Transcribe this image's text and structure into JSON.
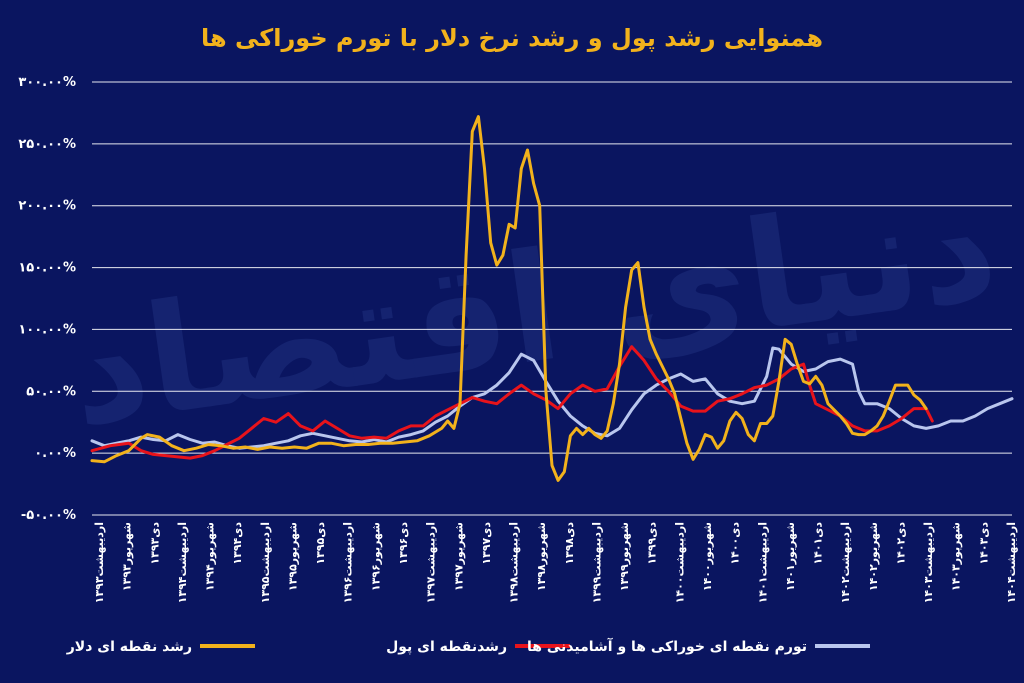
{
  "chart_data": {
    "type": "line",
    "title": "همنوایی رشد پول و رشد نرخ دلار با تورم خوراکی ها",
    "xlabel": "",
    "ylabel": "",
    "ylim": [
      -50,
      300
    ],
    "y_ticks": [
      "۳۰۰.۰۰%",
      "۲۵۰.۰۰%",
      "۲۰۰.۰۰%",
      "۱۵۰.۰۰%",
      "۱۰۰.۰۰%",
      "۵۰.۰۰%",
      "۰.۰۰%",
      "-۵۰.۰۰%"
    ],
    "y_tick_values": [
      300,
      250,
      200,
      150,
      100,
      50,
      0,
      -50
    ],
    "x_start_index": 0,
    "x_end_index": 127,
    "x_tick_labels": [
      "اردیبهشت۱۳۹۳",
      "شهریور۱۳۹۳",
      "دی۱۳۹۳",
      "اردیبهشت۱۳۹۴",
      "شهریور۱۳۹۴",
      "دی۱۳۹۴",
      "اردیبهشت۱۳۹۵",
      "شهریور۱۳۹۵",
      "دی۱۳۹۵",
      "اردیبهشت۱۳۹۶",
      "شهریور۱۳۹۶",
      "دی۱۳۹۶",
      "اردیبهشت۱۳۹۷",
      "شهریور۱۳۹۷",
      "دی۱۳۹۷",
      "اردیبهشت۱۳۹۸",
      "شهریور۱۳۹۸",
      "دی۱۳۹۸",
      "اردیبهشت۱۳۹۹",
      "شهریور۱۳۹۹",
      "دی۱۳۹۹",
      "اردیبهشت۱۴۰۰",
      "شهریور۱۴۰۰",
      "دی۱۴۰۰",
      "اردیبهشت۱۴۰۱",
      "شهریور۱۴۰۱",
      "دی۱۴۰۱",
      "اردیبهشت۱۴۰۲",
      "شهریور۱۴۰۲",
      "دی۱۴۰۲",
      "اردیبهشت۱۴۰۳",
      "شهریور۱۴۰۳",
      "دی۱۴۰۳",
      "اردیبهشت۱۴۰۴"
    ],
    "legend_position": "bottom",
    "grid": true,
    "series": [
      {
        "name": "رشد نقطه ای دلار",
        "color": "#f2b21c",
        "points": [
          [
            0,
            -6
          ],
          [
            2,
            -7
          ],
          [
            4,
            -2
          ],
          [
            6,
            2
          ],
          [
            8,
            12
          ],
          [
            9,
            15
          ],
          [
            11,
            13
          ],
          [
            13,
            6
          ],
          [
            15,
            2
          ],
          [
            17,
            4
          ],
          [
            19,
            7
          ],
          [
            21,
            6
          ],
          [
            23,
            4
          ],
          [
            25,
            5
          ],
          [
            27,
            3
          ],
          [
            29,
            5
          ],
          [
            31,
            4
          ],
          [
            33,
            5
          ],
          [
            35,
            4
          ],
          [
            37,
            8
          ],
          [
            39,
            8
          ],
          [
            41,
            6
          ],
          [
            43,
            7
          ],
          [
            45,
            7
          ],
          [
            47,
            8
          ],
          [
            49,
            8
          ],
          [
            51,
            9
          ],
          [
            53,
            10
          ],
          [
            55,
            14
          ],
          [
            57,
            20
          ],
          [
            58,
            26
          ],
          [
            59,
            20
          ],
          [
            60,
            40
          ],
          [
            61,
            160
          ],
          [
            62,
            260
          ],
          [
            63,
            272
          ],
          [
            64,
            230
          ],
          [
            65,
            170
          ],
          [
            66,
            152
          ],
          [
            67,
            160
          ],
          [
            68,
            185
          ],
          [
            69,
            182
          ],
          [
            70,
            230
          ],
          [
            71,
            245
          ],
          [
            72,
            218
          ],
          [
            73,
            200
          ],
          [
            74,
            50
          ],
          [
            75,
            -10
          ],
          [
            76,
            -22
          ],
          [
            77,
            -15
          ],
          [
            78,
            14
          ],
          [
            79,
            20
          ],
          [
            80,
            15
          ],
          [
            81,
            20
          ],
          [
            82,
            15
          ],
          [
            83,
            12
          ],
          [
            84,
            18
          ],
          [
            85,
            40
          ],
          [
            86,
            72
          ],
          [
            87,
            118
          ],
          [
            88,
            148
          ],
          [
            89,
            154
          ],
          [
            90,
            118
          ],
          [
            91,
            92
          ],
          [
            92,
            80
          ],
          [
            93,
            70
          ],
          [
            94,
            60
          ],
          [
            95,
            48
          ],
          [
            96,
            28
          ],
          [
            97,
            8
          ],
          [
            98,
            -5
          ],
          [
            99,
            3
          ],
          [
            100,
            15
          ],
          [
            101,
            13
          ],
          [
            102,
            4
          ],
          [
            103,
            10
          ],
          [
            104,
            26
          ],
          [
            105,
            33
          ],
          [
            106,
            28
          ],
          [
            107,
            15
          ],
          [
            108,
            10
          ],
          [
            109,
            24
          ],
          [
            110,
            24
          ],
          [
            111,
            30
          ],
          [
            112,
            58
          ],
          [
            113,
            92
          ],
          [
            114,
            88
          ],
          [
            115,
            72
          ],
          [
            116,
            58
          ],
          [
            117,
            56
          ],
          [
            118,
            62
          ],
          [
            119,
            55
          ],
          [
            120,
            40
          ],
          [
            121,
            35
          ],
          [
            122,
            30
          ],
          [
            123,
            24
          ],
          [
            124,
            16
          ],
          [
            125,
            15
          ],
          [
            126,
            15
          ],
          [
            127,
            18
          ],
          [
            128,
            22
          ],
          [
            129,
            30
          ],
          [
            130,
            42
          ],
          [
            131,
            55
          ],
          [
            132,
            55
          ],
          [
            133,
            55
          ],
          [
            134,
            47
          ],
          [
            135,
            43
          ],
          [
            136,
            36
          ]
        ]
      },
      {
        "name": "رشدنقطه ای پول",
        "color": "#e8131b",
        "points": [
          [
            0,
            2
          ],
          [
            3,
            6
          ],
          [
            6,
            8
          ],
          [
            8,
            2
          ],
          [
            10,
            -1
          ],
          [
            12,
            -2
          ],
          [
            14,
            -3
          ],
          [
            16,
            -4
          ],
          [
            18,
            -2
          ],
          [
            20,
            2
          ],
          [
            22,
            7
          ],
          [
            24,
            12
          ],
          [
            26,
            20
          ],
          [
            28,
            28
          ],
          [
            30,
            25
          ],
          [
            32,
            32
          ],
          [
            34,
            22
          ],
          [
            36,
            18
          ],
          [
            38,
            26
          ],
          [
            40,
            20
          ],
          [
            42,
            14
          ],
          [
            44,
            12
          ],
          [
            46,
            13
          ],
          [
            48,
            12
          ],
          [
            50,
            18
          ],
          [
            52,
            22
          ],
          [
            54,
            22
          ],
          [
            56,
            30
          ],
          [
            58,
            35
          ],
          [
            60,
            40
          ],
          [
            62,
            45
          ],
          [
            64,
            42
          ],
          [
            66,
            40
          ],
          [
            68,
            48
          ],
          [
            70,
            55
          ],
          [
            72,
            48
          ],
          [
            74,
            43
          ],
          [
            76,
            36
          ],
          [
            78,
            48
          ],
          [
            80,
            55
          ],
          [
            82,
            50
          ],
          [
            84,
            52
          ],
          [
            86,
            70
          ],
          [
            87,
            78
          ],
          [
            88,
            86
          ],
          [
            90,
            75
          ],
          [
            92,
            60
          ],
          [
            94,
            50
          ],
          [
            96,
            38
          ],
          [
            98,
            34
          ],
          [
            100,
            34
          ],
          [
            102,
            42
          ],
          [
            104,
            44
          ],
          [
            106,
            48
          ],
          [
            108,
            53
          ],
          [
            110,
            55
          ],
          [
            112,
            60
          ],
          [
            114,
            68
          ],
          [
            116,
            72
          ],
          [
            117,
            55
          ],
          [
            118,
            40
          ],
          [
            120,
            35
          ],
          [
            122,
            30
          ],
          [
            124,
            22
          ],
          [
            126,
            18
          ],
          [
            128,
            18
          ],
          [
            130,
            22
          ],
          [
            132,
            28
          ],
          [
            134,
            36
          ],
          [
            136,
            36
          ],
          [
            137,
            26
          ]
        ]
      },
      {
        "name": "تورم نقطه ای خوراکی ها و آشامیدنی ها",
        "color": "#b9c6ee",
        "points": [
          [
            0,
            10
          ],
          [
            2,
            6
          ],
          [
            4,
            8
          ],
          [
            6,
            10
          ],
          [
            8,
            13
          ],
          [
            10,
            11
          ],
          [
            12,
            10
          ],
          [
            14,
            15
          ],
          [
            16,
            11
          ],
          [
            18,
            8
          ],
          [
            20,
            9
          ],
          [
            22,
            6
          ],
          [
            24,
            4
          ],
          [
            26,
            5
          ],
          [
            28,
            6
          ],
          [
            30,
            8
          ],
          [
            32,
            10
          ],
          [
            34,
            14
          ],
          [
            36,
            16
          ],
          [
            38,
            14
          ],
          [
            40,
            12
          ],
          [
            42,
            10
          ],
          [
            44,
            9
          ],
          [
            46,
            11
          ],
          [
            48,
            9
          ],
          [
            50,
            13
          ],
          [
            52,
            15
          ],
          [
            54,
            18
          ],
          [
            56,
            25
          ],
          [
            58,
            30
          ],
          [
            60,
            38
          ],
          [
            62,
            45
          ],
          [
            64,
            48
          ],
          [
            66,
            55
          ],
          [
            68,
            65
          ],
          [
            70,
            80
          ],
          [
            72,
            75
          ],
          [
            74,
            58
          ],
          [
            76,
            42
          ],
          [
            78,
            30
          ],
          [
            80,
            22
          ],
          [
            82,
            16
          ],
          [
            84,
            14
          ],
          [
            86,
            20
          ],
          [
            88,
            35
          ],
          [
            90,
            48
          ],
          [
            92,
            55
          ],
          [
            94,
            60
          ],
          [
            96,
            64
          ],
          [
            98,
            58
          ],
          [
            100,
            60
          ],
          [
            102,
            48
          ],
          [
            104,
            42
          ],
          [
            106,
            40
          ],
          [
            108,
            42
          ],
          [
            110,
            62
          ],
          [
            111,
            85
          ],
          [
            112,
            84
          ],
          [
            114,
            72
          ],
          [
            116,
            66
          ],
          [
            118,
            68
          ],
          [
            120,
            74
          ],
          [
            122,
            76
          ],
          [
            124,
            72
          ],
          [
            125,
            50
          ],
          [
            126,
            40
          ],
          [
            128,
            40
          ],
          [
            130,
            36
          ],
          [
            132,
            28
          ],
          [
            134,
            22
          ],
          [
            136,
            20
          ],
          [
            138,
            22
          ],
          [
            140,
            26
          ],
          [
            142,
            26
          ],
          [
            144,
            30
          ],
          [
            146,
            36
          ],
          [
            148,
            40
          ],
          [
            150,
            44
          ]
        ]
      }
    ]
  },
  "watermark_text": "دنیای اقتصاد"
}
